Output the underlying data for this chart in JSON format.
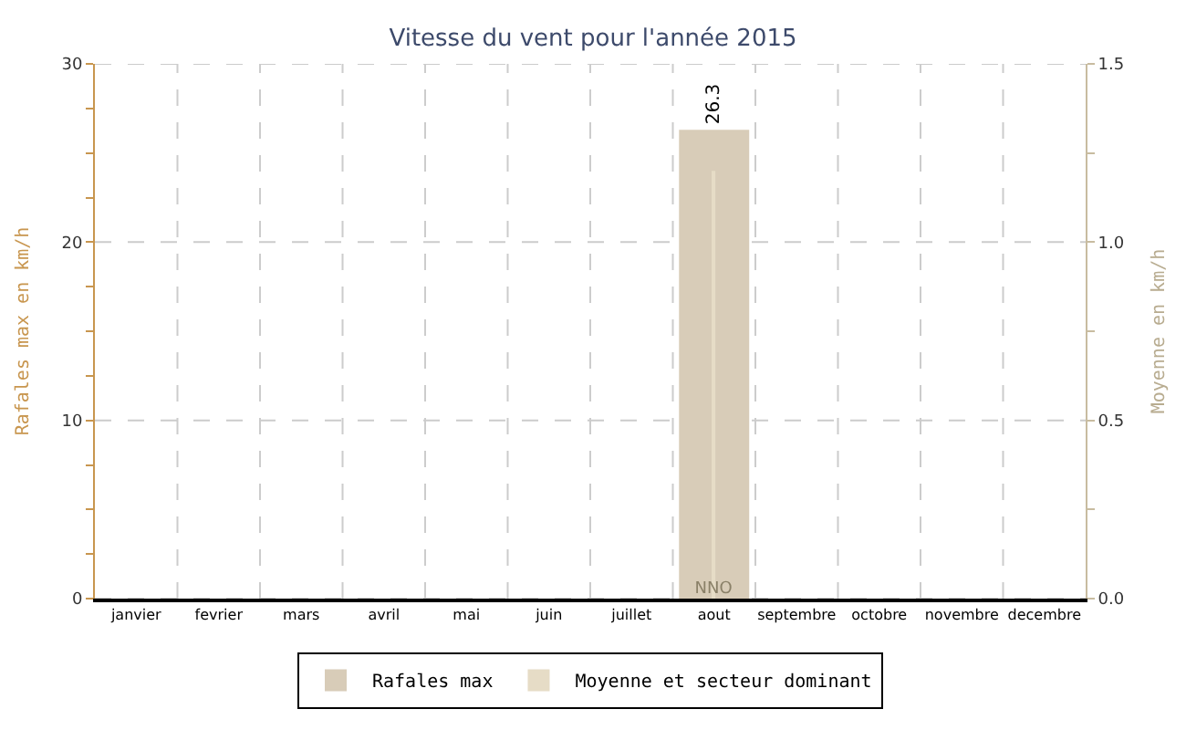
{
  "chart_data": {
    "type": "bar",
    "title": "Vitesse du vent pour l'année 2015",
    "categories": [
      "janvier",
      "fevrier",
      "mars",
      "avril",
      "mai",
      "juin",
      "juillet",
      "aout",
      "septembre",
      "octobre",
      "novembre",
      "decembre"
    ],
    "series": [
      {
        "name": "Rafales max",
        "color": "#d8ccb8",
        "values": [
          null,
          null,
          null,
          null,
          null,
          null,
          null,
          26.3,
          null,
          null,
          null,
          null
        ],
        "value_labels": [
          null,
          null,
          null,
          null,
          null,
          null,
          null,
          "26.3",
          null,
          null,
          null,
          null
        ]
      },
      {
        "name": "Moyenne et secteur dominant",
        "color": "#e6dcc6",
        "axis": "y2",
        "values": [
          null,
          null,
          null,
          null,
          null,
          null,
          null,
          1.2,
          null,
          null,
          null,
          null
        ],
        "value_labels": [
          null,
          null,
          null,
          null,
          null,
          null,
          null,
          "NNO",
          null,
          null,
          null,
          null
        ]
      }
    ],
    "ylabel": "Rafales max en km/h",
    "y2label": "Moyenne en km/h",
    "ylim": [
      0,
      30
    ],
    "yticks": [
      0,
      {
        "value": 2.5,
        "label": null
      },
      {
        "value": 5,
        "label": null
      },
      {
        "value": 7.5,
        "label": null
      },
      10,
      {
        "value": 12.5,
        "label": null
      },
      {
        "value": 15,
        "label": null
      },
      {
        "value": 17.5,
        "label": null
      },
      20,
      {
        "value": 22.5,
        "label": null
      },
      {
        "value": 25,
        "label": null
      },
      {
        "value": 27.5,
        "label": null
      },
      30
    ],
    "y2lim": [
      0,
      1.5
    ],
    "y2ticks": [
      {
        "value": 0,
        "label": "0.0"
      },
      {
        "value": 0.25,
        "label": null
      },
      {
        "value": 0.5,
        "label": "0.5"
      },
      {
        "value": 0.75,
        "label": null
      },
      {
        "value": 1,
        "label": "1.0"
      },
      {
        "value": 1.25,
        "label": null
      },
      {
        "value": 1.5,
        "label": "1.5"
      }
    ],
    "grid": true,
    "legend": "bottom"
  }
}
